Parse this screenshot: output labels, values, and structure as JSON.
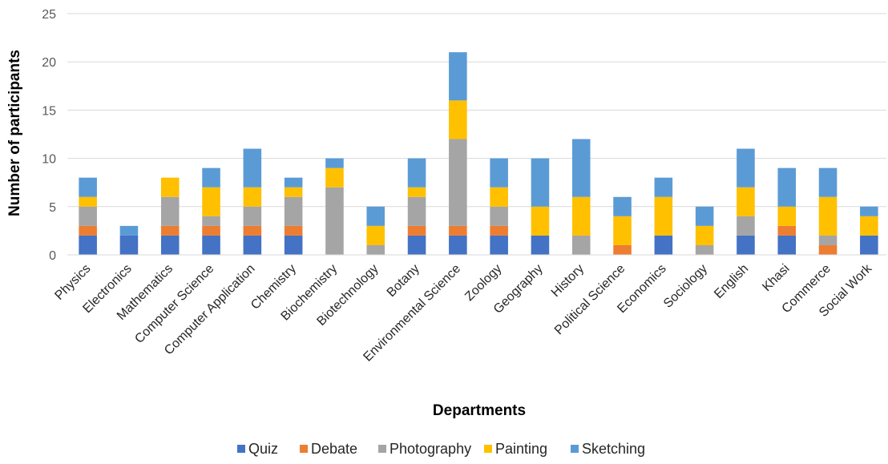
{
  "chart_data": {
    "type": "bar",
    "stacked": true,
    "title": "",
    "xlabel": "Departments",
    "ylabel": "Number of participants",
    "ylim": [
      0,
      25
    ],
    "yticks": [
      "0",
      "5",
      "10",
      "15",
      "20",
      "25"
    ],
    "grid": true,
    "legend_position": "bottom",
    "categories": [
      "Physics",
      "Electronics",
      "Mathematics",
      "Computer Science",
      "Computer Application",
      "Chemistry",
      "Biochemistry",
      "Biotechnology",
      "Botany",
      "Environmental Science",
      "Zoology",
      "Geography",
      "History",
      "Political Science",
      "Economics",
      "Sociology",
      "English",
      "Khasi",
      "Commerce",
      "Social Work"
    ],
    "series": [
      {
        "name": "Quiz",
        "color": "#4472c4",
        "values": [
          2,
          2,
          2,
          2,
          2,
          2,
          0,
          0,
          2,
          2,
          2,
          2,
          0,
          0,
          2,
          0,
          2,
          2,
          0,
          2
        ]
      },
      {
        "name": "Debate",
        "color": "#ed7d31",
        "values": [
          1,
          0,
          1,
          1,
          1,
          1,
          0,
          0,
          1,
          1,
          1,
          0,
          0,
          1,
          0,
          0,
          0,
          1,
          1,
          0
        ]
      },
      {
        "name": "Photography",
        "color": "#a5a5a5",
        "values": [
          2,
          0,
          3,
          1,
          2,
          3,
          7,
          1,
          3,
          9,
          2,
          0,
          2,
          0,
          0,
          1,
          2,
          0,
          1,
          0
        ]
      },
      {
        "name": "Painting",
        "color": "#ffc000",
        "values": [
          1,
          0,
          2,
          3,
          2,
          1,
          2,
          2,
          1,
          4,
          2,
          3,
          4,
          3,
          4,
          2,
          3,
          2,
          4,
          2
        ]
      },
      {
        "name": "Sketching",
        "color": "#5b9bd5",
        "values": [
          2,
          1,
          0,
          2,
          4,
          1,
          1,
          2,
          3,
          5,
          3,
          5,
          6,
          2,
          2,
          2,
          4,
          4,
          3,
          1
        ]
      }
    ]
  }
}
